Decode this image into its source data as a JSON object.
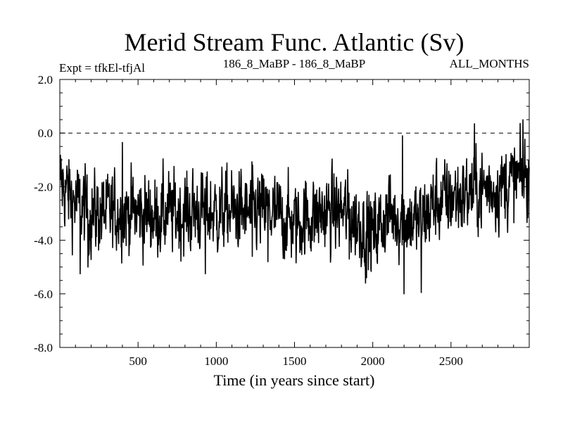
{
  "chart_data": {
    "type": "line",
    "title": "Merid Stream Func. Atlantic (Sv)",
    "subtitle_left": "Expt = tfkEl-tfjAl",
    "subtitle_center": "186_8_MaBP - 186_8_MaBP",
    "subtitle_right": "ALL_MONTHS",
    "xlabel": "Time (in years since start)",
    "ylabel": "",
    "xlim": [
      0,
      3000
    ],
    "ylim": [
      -8.0,
      2.0
    ],
    "x_ticks": [
      500,
      1000,
      1500,
      2000,
      2500
    ],
    "x_tick_labels": [
      "500",
      "1000",
      "1500",
      "2000",
      "2500"
    ],
    "y_ticks": [
      2.0,
      0.0,
      -2.0,
      -4.0,
      -6.0,
      -8.0
    ],
    "y_tick_labels": [
      "2.0",
      "0.0",
      "-2.0",
      "-4.0",
      "-6.0",
      "-8.0"
    ],
    "reference_line": {
      "y": 0.0,
      "style": "dashed"
    },
    "grid": false,
    "series": [
      {
        "points_x": [
          0,
          100,
          200,
          300,
          400,
          500,
          600,
          700,
          800,
          900,
          1000,
          1100,
          1200,
          1300,
          1400,
          1500,
          1600,
          1700,
          1800,
          1900,
          2000,
          2100,
          2200,
          2300,
          2400,
          2500,
          2600,
          2700,
          2800,
          2900,
          3000
        ],
        "mean": [
          -1.8,
          -2.6,
          -3.0,
          -3.0,
          -2.9,
          -3.0,
          -3.1,
          -3.0,
          -3.0,
          -2.9,
          -3.0,
          -2.9,
          -3.0,
          -2.9,
          -3.1,
          -3.4,
          -3.1,
          -3.0,
          -2.9,
          -3.3,
          -3.8,
          -3.0,
          -3.2,
          -3.3,
          -2.6,
          -2.4,
          -2.3,
          -2.1,
          -2.0,
          -1.8,
          -1.6
        ],
        "amplitude": 0.7,
        "extremes": [
          {
            "x": 130,
            "y": -5.25
          },
          {
            "x": 180,
            "y": -5.0
          },
          {
            "x": 400,
            "y": -0.35
          },
          {
            "x": 930,
            "y": -5.25
          },
          {
            "x": 1230,
            "y": -4.6
          },
          {
            "x": 1330,
            "y": -4.8
          },
          {
            "x": 1850,
            "y": -4.7
          },
          {
            "x": 1960,
            "y": -5.4
          },
          {
            "x": 2190,
            "y": -0.1
          },
          {
            "x": 2200,
            "y": -6.0
          },
          {
            "x": 2310,
            "y": -5.95
          },
          {
            "x": 2650,
            "y": 0.35
          },
          {
            "x": 2960,
            "y": 0.5
          }
        ]
      }
    ]
  }
}
